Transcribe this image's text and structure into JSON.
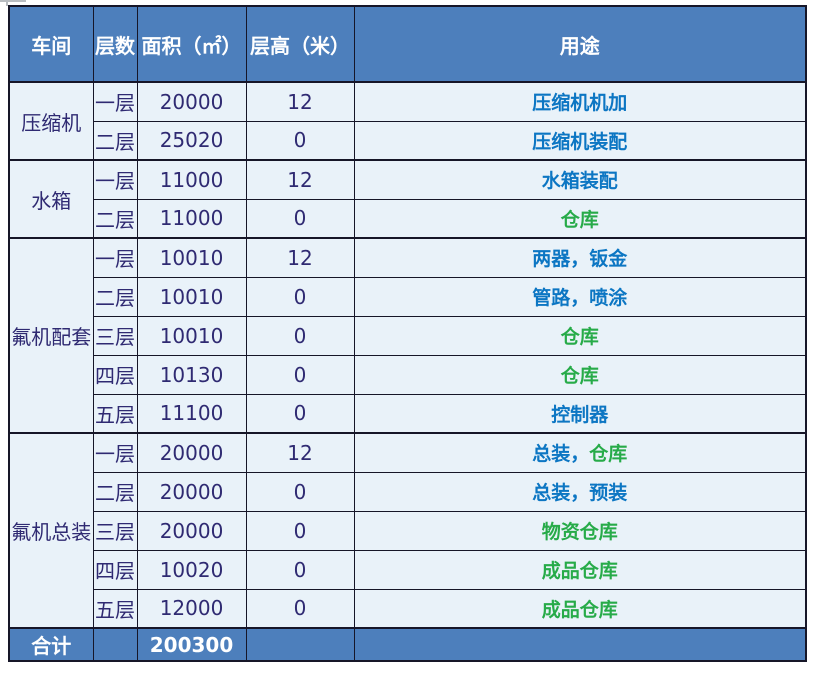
{
  "colors": {
    "header_bg": "#4d7fbc",
    "header_text": "#ffffff",
    "row_bg": "#e9f2f9",
    "border": "#161628",
    "text_dark": "#2f2a72",
    "usage_blue": "#0c76c3",
    "usage_green": "#27ab49"
  },
  "header": {
    "columns": [
      "车间",
      "层数",
      "面积（㎡）",
      "层高（米）",
      "用途"
    ]
  },
  "groups": [
    {
      "workshop": "压缩机",
      "rows": [
        {
          "layer": "一层",
          "area": "20000",
          "height": "12",
          "usage": [
            {
              "text": "压缩机机加",
              "color": "blue"
            }
          ]
        },
        {
          "layer": "二层",
          "area": "25020",
          "height": "0",
          "usage": [
            {
              "text": "压缩机装配",
              "color": "blue"
            }
          ]
        }
      ]
    },
    {
      "workshop": "水箱",
      "rows": [
        {
          "layer": "一层",
          "area": "11000",
          "height": "12",
          "usage": [
            {
              "text": "水箱装配",
              "color": "blue"
            }
          ]
        },
        {
          "layer": "二层",
          "area": "11000",
          "height": "0",
          "usage": [
            {
              "text": "仓库",
              "color": "green"
            }
          ]
        }
      ]
    },
    {
      "workshop": "氟机配套",
      "rows": [
        {
          "layer": "一层",
          "area": "10010",
          "height": "12",
          "usage": [
            {
              "text": "两器，钣金",
              "color": "blue"
            }
          ]
        },
        {
          "layer": "二层",
          "area": "10010",
          "height": "0",
          "usage": [
            {
              "text": "管路，喷涂",
              "color": "blue"
            }
          ]
        },
        {
          "layer": "三层",
          "area": "10010",
          "height": "0",
          "usage": [
            {
              "text": "仓库",
              "color": "green"
            }
          ]
        },
        {
          "layer": "四层",
          "area": "10130",
          "height": "0",
          "usage": [
            {
              "text": "仓库",
              "color": "green"
            }
          ]
        },
        {
          "layer": "五层",
          "area": "11100",
          "height": "0",
          "usage": [
            {
              "text": "控制器",
              "color": "blue"
            }
          ]
        }
      ]
    },
    {
      "workshop": "氟机总装",
      "rows": [
        {
          "layer": "一层",
          "area": "20000",
          "height": "12",
          "usage": [
            {
              "text": "总装，",
              "color": "blue"
            },
            {
              "text": "仓库",
              "color": "green"
            }
          ]
        },
        {
          "layer": "二层",
          "area": "20000",
          "height": "0",
          "usage": [
            {
              "text": "总装，预装",
              "color": "blue"
            }
          ]
        },
        {
          "layer": "三层",
          "area": "20000",
          "height": "0",
          "usage": [
            {
              "text": "物资仓库",
              "color": "green"
            }
          ]
        },
        {
          "layer": "四层",
          "area": "10020",
          "height": "0",
          "usage": [
            {
              "text": "成品仓库",
              "color": "green"
            }
          ]
        },
        {
          "layer": "五层",
          "area": "12000",
          "height": "0",
          "usage": [
            {
              "text": "成品仓库",
              "color": "green"
            }
          ]
        }
      ]
    }
  ],
  "footer": {
    "label": "合计",
    "total_area": "200300"
  }
}
